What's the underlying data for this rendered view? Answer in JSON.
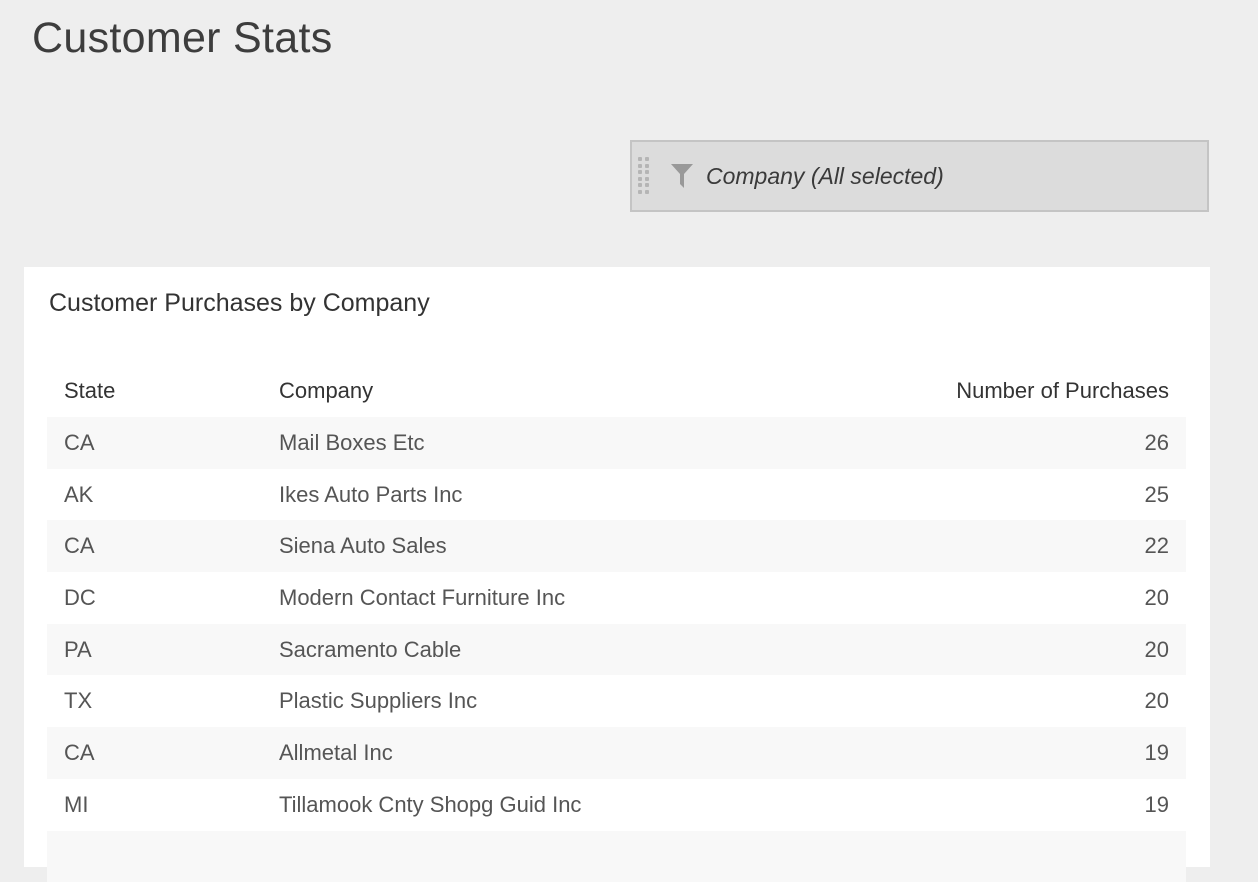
{
  "page": {
    "title": "Customer Stats"
  },
  "filter": {
    "label": "Company (All selected)",
    "icon": "funnel-icon",
    "handle_icon": "drag-handle-icon"
  },
  "table_panel": {
    "title": "Customer Purchases by Company",
    "columns": {
      "state": "State",
      "company": "Company",
      "purchases": "Number of Purchases"
    },
    "rows": [
      {
        "state": "CA",
        "company": "Mail Boxes Etc",
        "purchases": "26"
      },
      {
        "state": "AK",
        "company": "Ikes Auto Parts Inc",
        "purchases": "25"
      },
      {
        "state": "CA",
        "company": "Siena Auto Sales",
        "purchases": "22"
      },
      {
        "state": "DC",
        "company": "Modern Contact Furniture Inc",
        "purchases": "20"
      },
      {
        "state": "PA",
        "company": "Sacramento Cable",
        "purchases": "20"
      },
      {
        "state": "TX",
        "company": "Plastic Suppliers Inc",
        "purchases": "20"
      },
      {
        "state": "CA",
        "company": "Allmetal Inc",
        "purchases": "19"
      },
      {
        "state": "MI",
        "company": "Tillamook Cnty Shopg Guid Inc",
        "purchases": "19"
      },
      {
        "state": "",
        "company": "",
        "purchases": ""
      }
    ]
  },
  "colors": {
    "background": "#eeeeee",
    "panel": "#ffffff",
    "filter_bar": "#dcdcdc",
    "row_stripe": "#f8f8f8"
  }
}
